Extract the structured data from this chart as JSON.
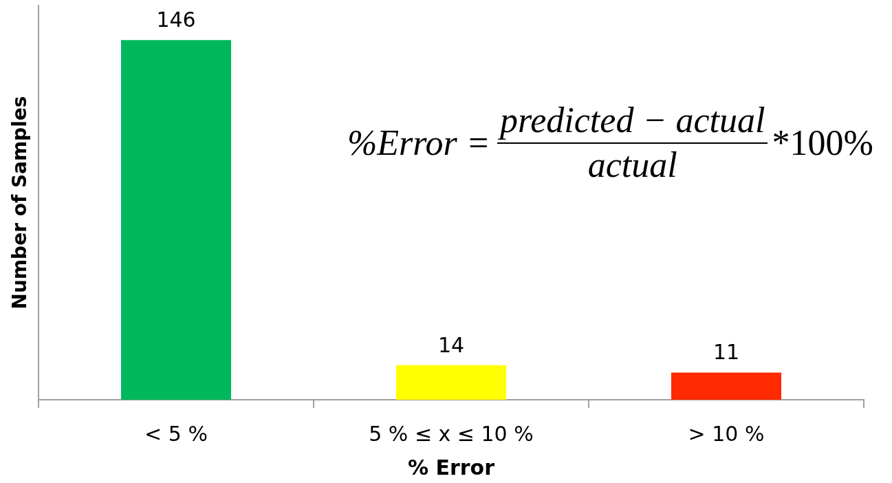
{
  "chart_data": {
    "type": "bar",
    "categories": [
      "< 5 %",
      "5 % ≤ x ≤ 10 %",
      "> 10 %"
    ],
    "values": [
      146,
      14,
      11
    ],
    "colors": [
      "#00b85c",
      "#ffff00",
      "#ff2a00"
    ],
    "xlabel": "% Error",
    "ylabel": "Number of Samples",
    "ylim": [
      0,
      160
    ],
    "tick_labels": "x",
    "data_labels": true,
    "annotations": [
      "%Error =",
      "predicted − actual",
      "actual",
      "*100%"
    ]
  }
}
